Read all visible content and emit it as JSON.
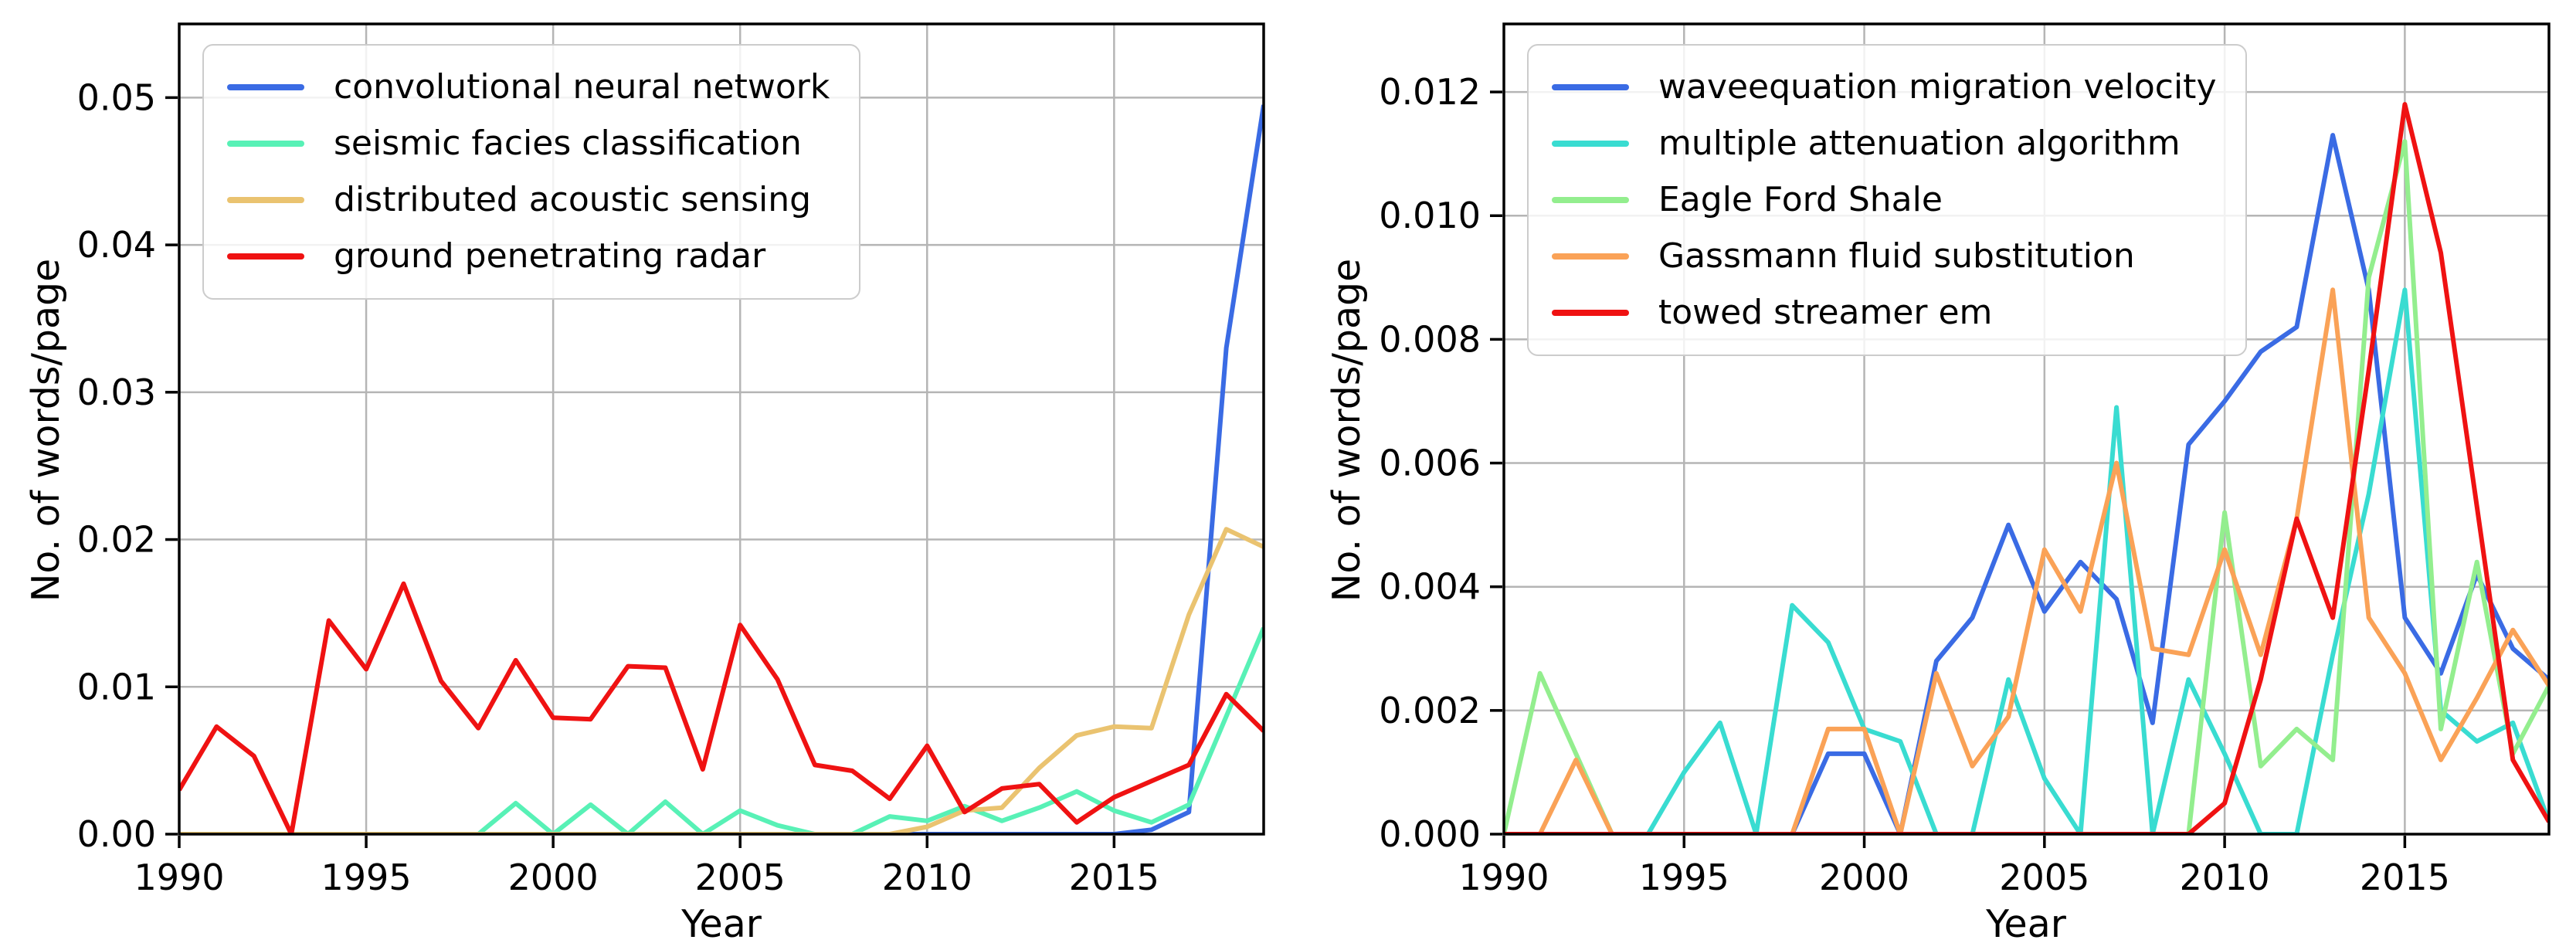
{
  "figure": {
    "background": "#ffffff",
    "grid_color": "#b5b5b5",
    "axis_color": "#000000"
  },
  "chart_data": [
    {
      "type": "line",
      "title": "",
      "xlabel": "Year",
      "ylabel": "No. of words/page",
      "legend_position": "upper left",
      "grid": true,
      "xlim": [
        1990,
        2019
      ],
      "ylim": [
        0,
        0.055
      ],
      "x_ticks": [
        1990,
        1995,
        2000,
        2005,
        2010,
        2015
      ],
      "y_ticks": [
        0,
        0.01,
        0.02,
        0.03,
        0.04,
        0.05
      ],
      "y_tick_labels": [
        "0.00",
        "0.01",
        "0.02",
        "0.03",
        "0.04",
        "0.05"
      ],
      "x": [
        1990,
        1991,
        1992,
        1993,
        1994,
        1995,
        1996,
        1997,
        1998,
        1999,
        2000,
        2001,
        2002,
        2003,
        2004,
        2005,
        2006,
        2007,
        2008,
        2009,
        2010,
        2011,
        2012,
        2013,
        2014,
        2015,
        2016,
        2017,
        2018,
        2019
      ],
      "series": [
        {
          "name": "convolutional neural network",
          "color": "#3A6BE4",
          "values": [
            0,
            0,
            0,
            0,
            0,
            0,
            0,
            0,
            0,
            0,
            0,
            0,
            0,
            0,
            0,
            0,
            0,
            0,
            0,
            0,
            0,
            0,
            0,
            0,
            0,
            0,
            0.0003,
            0.0015,
            0.033,
            0.0495
          ]
        },
        {
          "name": "seismic facies classification",
          "color": "#58F1B6",
          "values": [
            0,
            0,
            0,
            0,
            0,
            0,
            0,
            0,
            0,
            0.0021,
            0,
            0.002,
            0,
            0.0022,
            0,
            0.0016,
            0.0006,
            0,
            0,
            0.0012,
            0.0009,
            0.0019,
            0.0009,
            0.0018,
            0.0029,
            0.0016,
            0.0008,
            0.002,
            0.008,
            0.014
          ]
        },
        {
          "name": "distributed acoustic sensing",
          "color": "#EAC370",
          "values": [
            0,
            0,
            0,
            0,
            0,
            0,
            0,
            0,
            0,
            0,
            0,
            0,
            0,
            0,
            0,
            0,
            0,
            0,
            0,
            0,
            0.0005,
            0.0016,
            0.0018,
            0.0045,
            0.0067,
            0.0073,
            0.0072,
            0.0149,
            0.0207,
            0.0195
          ]
        },
        {
          "name": "ground penetrating radar",
          "color": "#EF1212",
          "values": [
            0.003,
            0.0073,
            0.0053,
            0,
            0.0145,
            0.0112,
            0.017,
            0.0104,
            0.0072,
            0.0118,
            0.0079,
            0.0078,
            0.0114,
            0.0113,
            0.0044,
            0.0142,
            0.0105,
            0.0047,
            0.0043,
            0.0024,
            0.006,
            0.0015,
            0.0031,
            0.0034,
            0.0008,
            0.0025,
            0.0036,
            0.0047,
            0.0095,
            0.007
          ]
        }
      ]
    },
    {
      "type": "line",
      "title": "",
      "xlabel": "Year",
      "ylabel": "No. of words/page",
      "legend_position": "upper left",
      "grid": true,
      "xlim": [
        1990,
        2019
      ],
      "ylim": [
        0,
        0.0131
      ],
      "x_ticks": [
        1990,
        1995,
        2000,
        2005,
        2010,
        2015
      ],
      "y_ticks": [
        0,
        0.002,
        0.004,
        0.006,
        0.008,
        0.01,
        0.012
      ],
      "y_tick_labels": [
        "0.000",
        "0.002",
        "0.004",
        "0.006",
        "0.008",
        "0.010",
        "0.012"
      ],
      "x": [
        1990,
        1991,
        1992,
        1993,
        1994,
        1995,
        1996,
        1997,
        1998,
        1999,
        2000,
        2001,
        2002,
        2003,
        2004,
        2005,
        2006,
        2007,
        2008,
        2009,
        2010,
        2011,
        2012,
        2013,
        2014,
        2015,
        2016,
        2017,
        2018,
        2019
      ],
      "series": [
        {
          "name": "waveequation migration velocity",
          "color": "#3A6BE4",
          "values": [
            0,
            0,
            0,
            0,
            0,
            0,
            0,
            0,
            0,
            0.0013,
            0.0013,
            0,
            0.0028,
            0.0035,
            0.005,
            0.0036,
            0.0044,
            0.0038,
            0.0018,
            0.0063,
            0.007,
            0.0078,
            0.0082,
            0.0113,
            0.0088,
            0.0035,
            0.0026,
            0.0042,
            0.003,
            0.0025
          ]
        },
        {
          "name": "multiple attenuation algorithm",
          "color": "#39DCD1",
          "values": [
            0,
            0,
            0,
            0,
            0,
            0.001,
            0.0018,
            0,
            0.0037,
            0.0031,
            0.0017,
            0.0015,
            0,
            0,
            0.0025,
            0.0009,
            0,
            0.0069,
            0,
            0.0025,
            0.0013,
            0,
            0,
            0.0029,
            0.0055,
            0.0088,
            0.002,
            0.0015,
            0.0018,
            0.0002
          ]
        },
        {
          "name": "Eagle Ford Shale",
          "color": "#93EE8E",
          "values": [
            0,
            0.0026,
            0.0013,
            0,
            0,
            0,
            0,
            0,
            0,
            0,
            0,
            0,
            0,
            0,
            0,
            0,
            0,
            0,
            0,
            0,
            0.0052,
            0.0011,
            0.0017,
            0.0012,
            0.009,
            0.0112,
            0.0017,
            0.0044,
            0.0013,
            0.0024
          ]
        },
        {
          "name": "Gassmann fluid substitution",
          "color": "#FAA257",
          "values": [
            0,
            0,
            0.0012,
            0,
            0,
            0,
            0,
            0,
            0,
            0.0017,
            0.0017,
            0,
            0.0026,
            0.0011,
            0.0019,
            0.0046,
            0.0036,
            0.006,
            0.003,
            0.0029,
            0.0046,
            0.0029,
            0.0051,
            0.0088,
            0.0035,
            0.0026,
            0.0012,
            0.0022,
            0.0033,
            0.0024
          ]
        },
        {
          "name": "towed streamer em",
          "color": "#EF1212",
          "values": [
            0,
            0,
            0,
            0,
            0,
            0,
            0,
            0,
            0,
            0,
            0,
            0,
            0,
            0,
            0,
            0,
            0,
            0,
            0,
            0,
            0.0005,
            0.0025,
            0.0051,
            0.0035,
            0.0075,
            0.0118,
            0.0094,
            0.0053,
            0.0012,
            0.0002
          ]
        }
      ]
    }
  ]
}
